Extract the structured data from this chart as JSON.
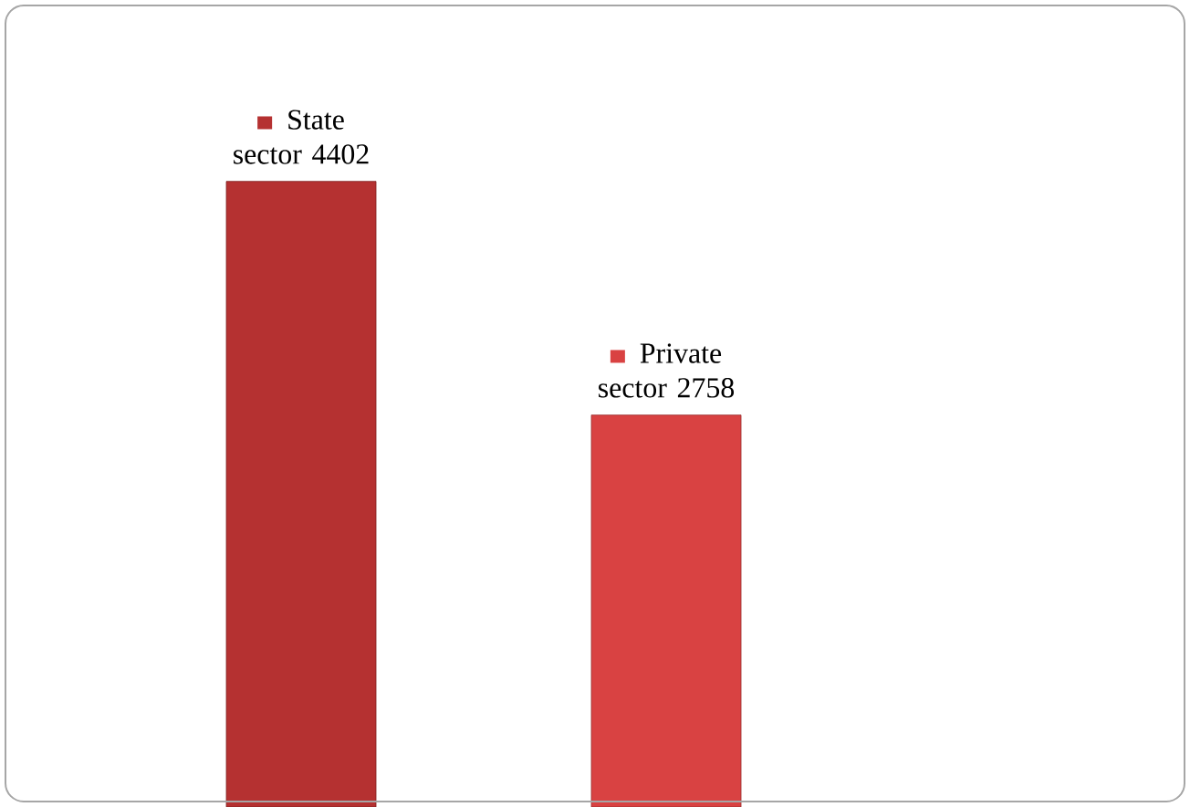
{
  "chart_data": {
    "type": "bar",
    "categories": [
      "State sector",
      "Private sector"
    ],
    "values": [
      4402,
      2758
    ],
    "colors": [
      "#b53131",
      "#d94242"
    ],
    "data_labels": true,
    "value_labels": [
      "4402",
      "2758"
    ]
  }
}
